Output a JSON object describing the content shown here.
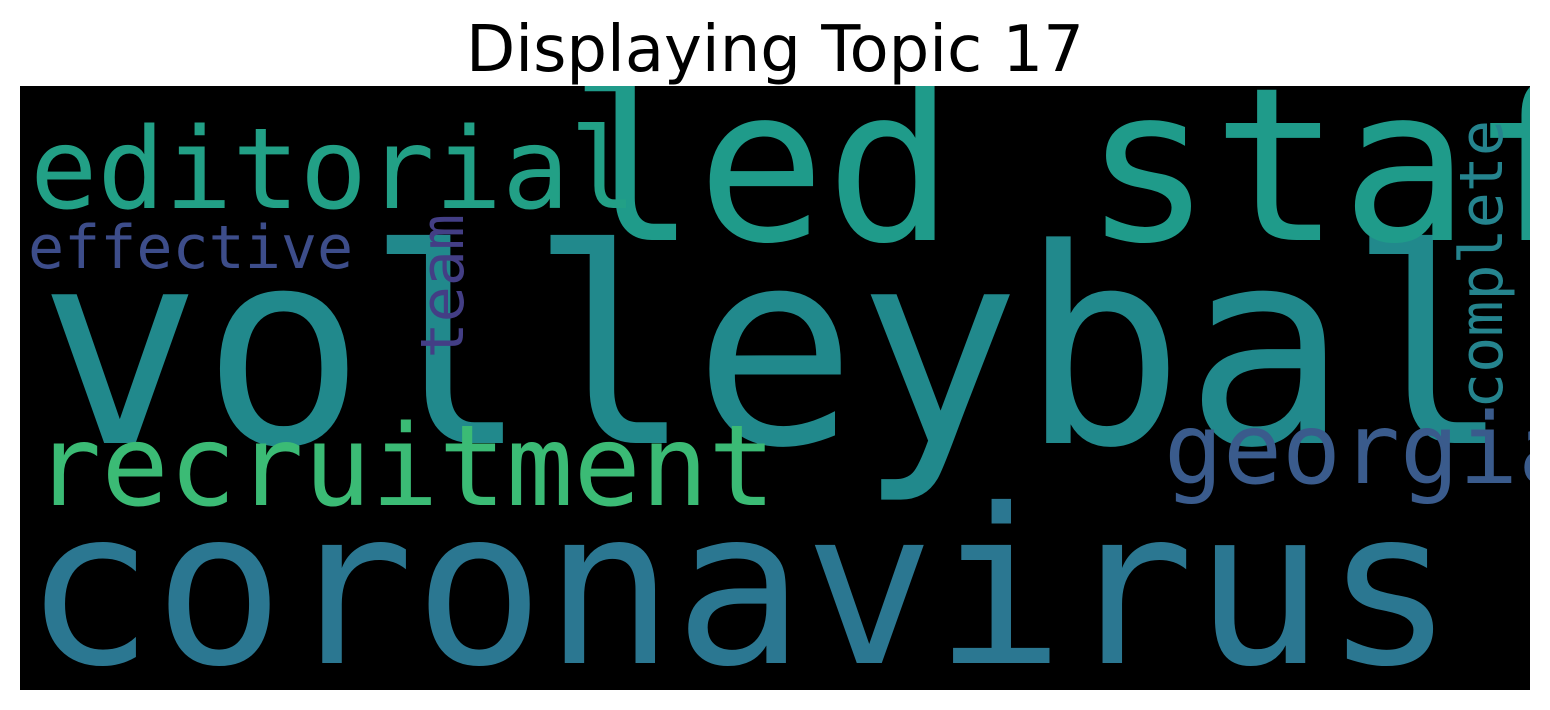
{
  "title": "Displaying Topic 17",
  "background_color": "#000000",
  "words": [
    {
      "text": "volleyball",
      "color": "#21898c"
    },
    {
      "text": "coronavirus",
      "color": "#2b7791"
    },
    {
      "text": "led staff",
      "color": "#1f9b8a"
    },
    {
      "text": "editorial",
      "color": "#22a086"
    },
    {
      "text": "recruitment",
      "color": "#3bbb75"
    },
    {
      "text": "georgia",
      "color": "#3a5b8c"
    },
    {
      "text": "effective",
      "color": "#3d4d8a"
    },
    {
      "text": "team",
      "color": "#433e85"
    },
    {
      "text": "complete",
      "color": "#25848e"
    }
  ]
}
